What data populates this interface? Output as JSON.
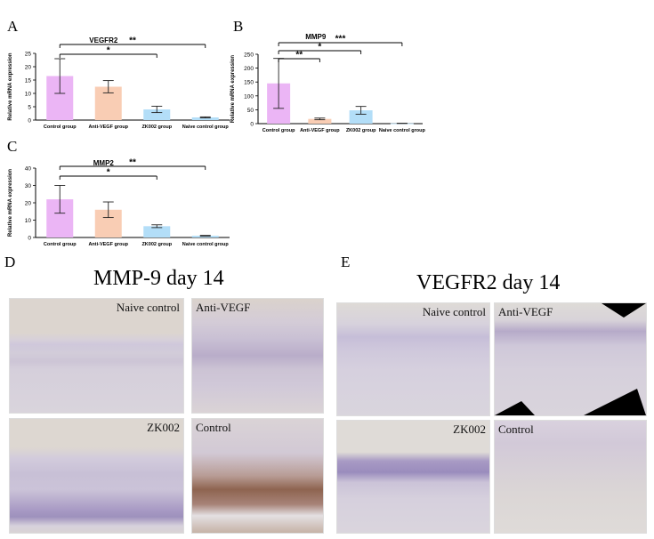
{
  "panel_letters": {
    "a": "A",
    "b": "B",
    "c": "C",
    "d": "D",
    "e": "E"
  },
  "colors": {
    "control": "#ebb5f5",
    "anti_vegf": "#f9cdb4",
    "zk002": "#b3def8",
    "naive": "#b3def8",
    "axis": "#000000"
  },
  "chart_data": [
    {
      "type": "bar",
      "title": "VEGFR2",
      "ylabel": "Relative mRNA expression",
      "categories": [
        "Control group",
        "Anti-VEGF group",
        "ZK002 group",
        "Naive control group"
      ],
      "values": [
        16.5,
        12.5,
        4.0,
        1.0
      ],
      "errors": [
        6.5,
        2.3,
        1.2,
        0.2
      ],
      "ylim": [
        0,
        25
      ],
      "yticks": [
        "0",
        "5",
        "10",
        "15",
        "20",
        "25"
      ],
      "significance": [
        {
          "from": 0,
          "to": 2,
          "label": "*"
        },
        {
          "from": 0,
          "to": 3,
          "label": "**"
        }
      ]
    },
    {
      "type": "bar",
      "title": "MMP9",
      "ylabel": "Relative mRNA expression",
      "categories": [
        "Control group",
        "Anti-VEGF group",
        "ZK002 group",
        "Naive control group"
      ],
      "values": [
        145,
        17,
        48,
        1
      ],
      "errors": [
        90,
        3,
        14,
        0.5
      ],
      "ylim": [
        0,
        250
      ],
      "yticks": [
        "0",
        "50",
        "100",
        "150",
        "200",
        "250"
      ],
      "significance": [
        {
          "from": 0,
          "to": 1,
          "label": "**"
        },
        {
          "from": 0,
          "to": 2,
          "label": "*"
        },
        {
          "from": 0,
          "to": 3,
          "label": "***"
        }
      ]
    },
    {
      "type": "bar",
      "title": "MMP2",
      "ylabel": "Relative mRNA expression",
      "categories": [
        "Control group",
        "Anti-VEGF group",
        "ZK002 group",
        "Naive control group"
      ],
      "values": [
        22,
        16,
        6.5,
        1
      ],
      "errors": [
        8,
        4.5,
        0.8,
        0.2
      ],
      "ylim": [
        0,
        40
      ],
      "yticks": [
        "0",
        "10",
        "20",
        "30",
        "40"
      ],
      "significance": [
        {
          "from": 0,
          "to": 2,
          "label": "*"
        },
        {
          "from": 0,
          "to": 3,
          "label": "**"
        }
      ]
    }
  ],
  "ihc": {
    "mmp9": {
      "title": "MMP-9 day 14",
      "naive": "Naive control",
      "anti": "Anti-VEGF",
      "zk": "ZK002",
      "control": "Control"
    },
    "vegfr2": {
      "title": "VEGFR2 day 14",
      "naive": "Naive control",
      "anti": "Anti-VEGF",
      "zk": "ZK002",
      "control": "Control"
    }
  }
}
